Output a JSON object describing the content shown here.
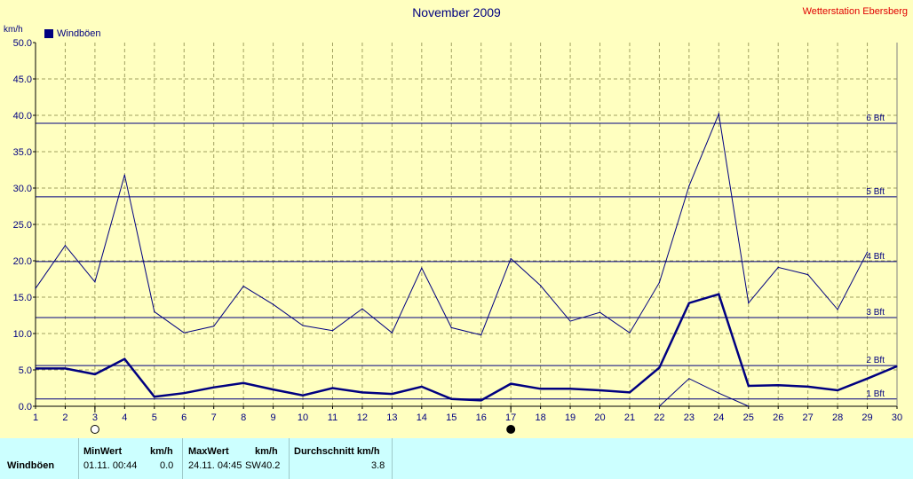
{
  "header": {
    "title": "November 2009",
    "station": "Wetterstation Ebersberg",
    "y_unit": "km/h",
    "legend_label": "Windböen"
  },
  "colors": {
    "background": "#ffffc0",
    "plot_area": "#ffffc0",
    "series": "#000080",
    "grid": "#a0a060",
    "stats_background": "#ccffff",
    "station_text": "#e00000"
  },
  "chart_data": {
    "type": "line",
    "title": "November 2009",
    "ylabel": "km/h",
    "xlim": [
      1,
      30
    ],
    "ylim": [
      0,
      50
    ],
    "x_ticks": [
      1,
      2,
      3,
      4,
      5,
      6,
      7,
      8,
      9,
      10,
      11,
      12,
      13,
      14,
      15,
      16,
      17,
      18,
      19,
      20,
      21,
      22,
      23,
      24,
      25,
      26,
      27,
      28,
      29,
      30
    ],
    "y_ticks": [
      "0.0",
      "5.0",
      "10.0",
      "15.0",
      "20.0",
      "25.0",
      "30.0",
      "35.0",
      "40.0",
      "45.0",
      "50.0"
    ],
    "grid": true,
    "legend": "top-left",
    "series": [
      {
        "name": "Windböen",
        "role": "average",
        "x": [
          1,
          2,
          3,
          4,
          5,
          6,
          7,
          8,
          9,
          10,
          11,
          12,
          13,
          14,
          15,
          16,
          17,
          18,
          19,
          20,
          21,
          22,
          23,
          24,
          25,
          26,
          27,
          28,
          29,
          30
        ],
        "values": [
          5.2,
          5.2,
          4.4,
          6.5,
          1.3,
          1.8,
          2.6,
          3.2,
          2.3,
          1.5,
          2.5,
          1.9,
          1.7,
          2.7,
          1.0,
          0.8,
          3.1,
          2.4,
          2.4,
          2.2,
          1.9,
          5.3,
          14.2,
          15.4,
          2.8,
          2.9,
          2.7,
          2.2,
          3.8,
          5.5
        ]
      },
      {
        "role": "maximum",
        "x": [
          1,
          2,
          3,
          4,
          5,
          6,
          7,
          8,
          9,
          10,
          11,
          12,
          13,
          14,
          15,
          16,
          17,
          18,
          19,
          20,
          21,
          22,
          23,
          24,
          25,
          26,
          27,
          28,
          29,
          30
        ],
        "values": [
          16.2,
          22.1,
          17.1,
          31.8,
          13.0,
          10.1,
          11.0,
          16.5,
          14.0,
          11.1,
          10.4,
          13.4,
          10.1,
          19.0,
          10.8,
          9.8,
          20.3,
          16.6,
          11.7,
          12.9,
          10.1,
          17.0,
          30.3,
          40.2,
          14.2,
          19.1,
          18.1,
          13.3,
          21.2,
          null
        ]
      },
      {
        "role": "minimum",
        "x": [
          22,
          23,
          24,
          25
        ],
        "values": [
          0.0,
          3.8,
          1.8,
          0.0
        ]
      }
    ],
    "reference_lines": [
      {
        "label": "1 Bft",
        "value": 1.0
      },
      {
        "label": "2 Bft",
        "value": 5.6
      },
      {
        "label": "3 Bft",
        "value": 12.2
      },
      {
        "label": "4 Bft",
        "value": 19.9
      },
      {
        "label": "5 Bft",
        "value": 28.8
      },
      {
        "label": "6 Bft",
        "value": 38.9
      }
    ],
    "moon_markers": [
      {
        "day": 3,
        "phase": "full-moon-icon"
      },
      {
        "day": 17,
        "phase": "new-moon-icon"
      }
    ]
  },
  "stats": {
    "headers": {
      "min": "MinWert",
      "min_unit": "km/h",
      "max": "MaxWert",
      "max_unit": "km/h",
      "avg": "Durchschnitt km/h"
    },
    "rows": [
      {
        "label": "Windböen",
        "min_time": "01.11.  00:44",
        "min_value": "0.0",
        "max_time": "24.11.  04:45",
        "max_dir": "SW",
        "max_value": "40.2",
        "avg": "3.8"
      }
    ]
  }
}
